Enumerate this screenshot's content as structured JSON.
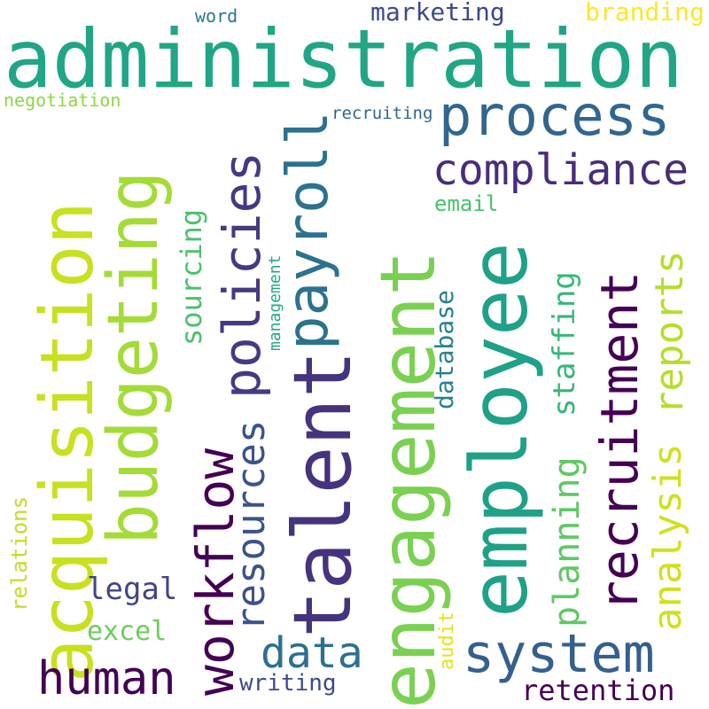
{
  "words": {
    "administration": {
      "text": "administration",
      "color": "#21a685"
    },
    "engagement": {
      "text": "engagement",
      "color": "#7ad151"
    },
    "employee": {
      "text": "employee",
      "color": "#1fa187"
    },
    "talent": {
      "text": "talent",
      "color": "#46337e"
    },
    "acquisition": {
      "text": "acquisition",
      "color": "#c8e020"
    },
    "budgeting": {
      "text": "budgeting",
      "color": "#a5db36"
    },
    "process": {
      "text": "process",
      "color": "#31668e"
    },
    "compliance": {
      "text": "compliance",
      "color": "#472d7b"
    },
    "payroll": {
      "text": "payroll",
      "color": "#2c728e"
    },
    "policies": {
      "text": "policies",
      "color": "#443a83"
    },
    "recruitment": {
      "text": "recruitment",
      "color": "#440154"
    },
    "system": {
      "text": "system",
      "color": "#355f8d"
    },
    "workflow": {
      "text": "workflow",
      "color": "#440154"
    },
    "resources": {
      "text": "resources",
      "color": "#3b528b"
    },
    "human": {
      "text": "human",
      "color": "#440154"
    },
    "data": {
      "text": "data",
      "color": "#2d708e"
    },
    "reports": {
      "text": "reports",
      "color": "#b5de2b"
    },
    "analysis": {
      "text": "analysis",
      "color": "#d0e11c"
    },
    "planning": {
      "text": "planning",
      "color": "#5ec962"
    },
    "staffing": {
      "text": "staffing",
      "color": "#35b779"
    },
    "sourcing": {
      "text": "sourcing",
      "color": "#4ac16d"
    },
    "database": {
      "text": "database",
      "color": "#26828e"
    },
    "retention": {
      "text": "retention",
      "color": "#440154"
    },
    "writing": {
      "text": "writing",
      "color": "#3e4a89"
    },
    "legal": {
      "text": "legal",
      "color": "#414487"
    },
    "excel": {
      "text": "excel",
      "color": "#6ccd5a"
    },
    "marketing": {
      "text": "marketing",
      "color": "#3e4989"
    },
    "branding": {
      "text": "branding",
      "color": "#fde725"
    },
    "word": {
      "text": "word",
      "color": "#2a788e"
    },
    "negotiation": {
      "text": "negotiation",
      "color": "#8fd744"
    },
    "recruiting": {
      "text": "recruiting",
      "color": "#31668e"
    },
    "email": {
      "text": "email",
      "color": "#4ac16d"
    },
    "management": {
      "text": "management",
      "color": "#22a884"
    },
    "relations": {
      "text": "relations",
      "color": "#bddf26"
    },
    "audit": {
      "text": "audit",
      "color": "#e5e419"
    }
  }
}
